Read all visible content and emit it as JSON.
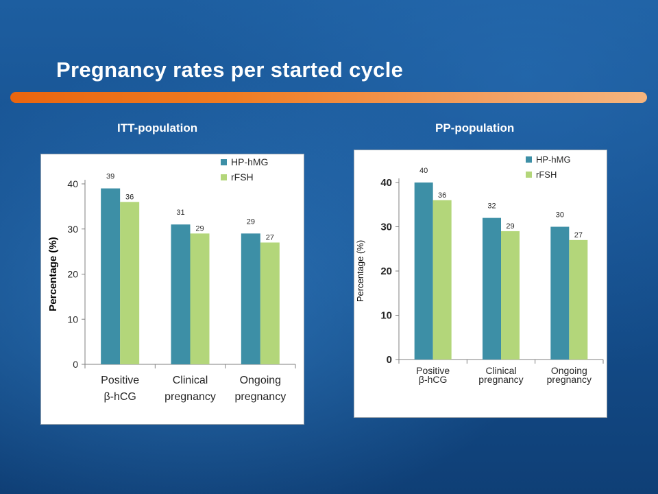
{
  "slide": {
    "title": "Pregnancy rates per started cycle"
  },
  "colors": {
    "hp_hmg": "#3d8fa6",
    "rfsh": "#b3d67a",
    "accent_bar": "#ee7a20"
  },
  "chart_data": [
    {
      "type": "bar",
      "title": "ITT-population",
      "categories": [
        [
          "Positive",
          "β-hCG"
        ],
        [
          "Clinical",
          "pregnancy"
        ],
        [
          "Ongoing",
          "pregnancy"
        ]
      ],
      "series": [
        {
          "name": "HP-hMG",
          "values": [
            39,
            31,
            29
          ]
        },
        {
          "name": "rFSH",
          "values": [
            36,
            29,
            27
          ]
        }
      ],
      "ylabel": "Percentage (%)",
      "ylim": [
        0,
        40
      ],
      "yticks": [
        0,
        10,
        20,
        30,
        40
      ],
      "legend": "top-right",
      "grid": false
    },
    {
      "type": "bar",
      "title": "PP-population",
      "categories": [
        [
          "Positive",
          "β-hCG"
        ],
        [
          "Clinical",
          "pregnancy"
        ],
        [
          "Ongoing",
          "pregnancy"
        ]
      ],
      "series": [
        {
          "name": "HP-hMG",
          "values": [
            40,
            32,
            30
          ]
        },
        {
          "name": "rFSH",
          "values": [
            36,
            29,
            27
          ]
        }
      ],
      "ylabel": "Percentage (%)",
      "ylim": [
        0,
        40
      ],
      "yticks": [
        0,
        10,
        20,
        30,
        40
      ],
      "legend": "top-right",
      "grid": false
    }
  ]
}
